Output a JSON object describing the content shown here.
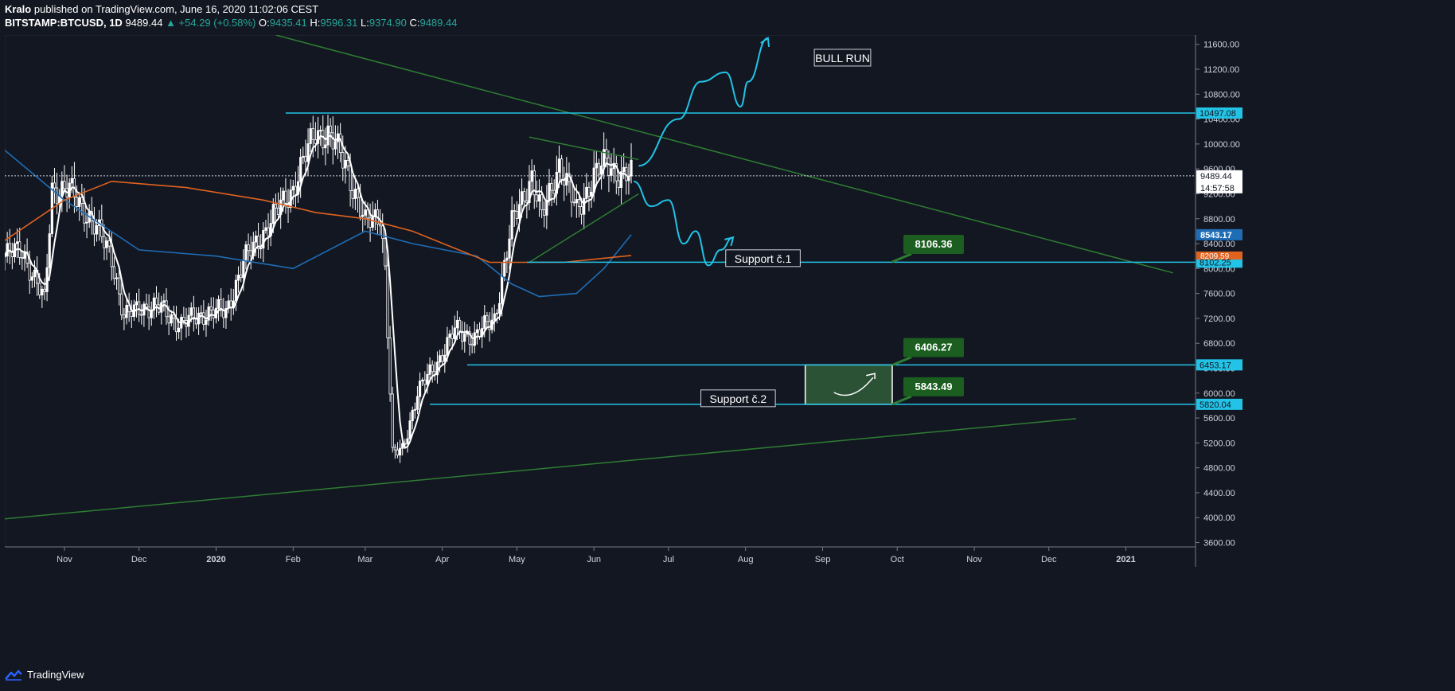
{
  "header": {
    "author": "Kralo",
    "published_text": "published on TradingView.com, June 16, 2020 11:02:06 CEST",
    "symbol": "BITSTAMP:BTCUSD, 1D",
    "price": "9489.44",
    "change": "▲ +54.29 (+0.58%)",
    "o_label": "O:",
    "o": "9435.41",
    "h_label": "H:",
    "h": "9596.31",
    "l_label": "L:",
    "l": "9374.90",
    "c_label": "C:",
    "c": "9489.44"
  },
  "footer": {
    "brand": "TradingView"
  },
  "colors": {
    "background": "#131722",
    "candle": "#ffffff",
    "ma_fast": "#ffffff",
    "ma_blue": "#1e6db5",
    "ma_orange": "#e0621f",
    "level": "#22c3e6",
    "trend": "#2e7d32",
    "label_green": "#1b5e20"
  },
  "chart_data": {
    "type": "candlestick",
    "y_axis": {
      "ticks": [
        "11600.00",
        "11200.00",
        "10800.00",
        "10400.00",
        "10000.00",
        "9600.00",
        "9200.00",
        "8800.00",
        "8400.00",
        "8000.00",
        "7600.00",
        "7200.00",
        "6800.00",
        "6400.00",
        "6000.00",
        "5600.00",
        "5200.00",
        "4800.00",
        "4400.00",
        "4000.00",
        "3600.00"
      ],
      "ylim": [
        3530,
        11750
      ]
    },
    "x_axis": {
      "ticks": [
        {
          "label": "Nov",
          "date": "2019-11-01"
        },
        {
          "label": "Dec",
          "date": "2019-12-01"
        },
        {
          "label": "2020",
          "date": "2020-01-01"
        },
        {
          "label": "Feb",
          "date": "2020-02-01"
        },
        {
          "label": "Mar",
          "date": "2020-03-01"
        },
        {
          "label": "Apr",
          "date": "2020-04-01"
        },
        {
          "label": "May",
          "date": "2020-05-01"
        },
        {
          "label": "Jun",
          "date": "2020-06-01"
        },
        {
          "label": "Jul",
          "date": "2020-07-01"
        },
        {
          "label": "Aug",
          "date": "2020-08-01"
        },
        {
          "label": "Sep",
          "date": "2020-09-01"
        },
        {
          "label": "Oct",
          "date": "2020-10-01"
        },
        {
          "label": "Nov",
          "date": "2020-11-01"
        },
        {
          "label": "Dec",
          "date": "2020-12-01"
        },
        {
          "label": "2021",
          "date": "2021-01-01"
        }
      ],
      "xlim": [
        "2019-10-08",
        "2021-01-29"
      ]
    },
    "price_path": [
      [
        "2019-10-08",
        8200
      ],
      [
        "2019-10-15",
        8300
      ],
      [
        "2019-10-24",
        7450
      ],
      [
        "2019-10-27",
        9300
      ],
      [
        "2019-11-03",
        9250
      ],
      [
        "2019-11-10",
        8900
      ],
      [
        "2019-11-20",
        8200
      ],
      [
        "2019-11-25",
        7200
      ],
      [
        "2019-12-02",
        7400
      ],
      [
        "2019-12-10",
        7350
      ],
      [
        "2019-12-18",
        7100
      ],
      [
        "2019-12-28",
        7300
      ],
      [
        "2020-01-05",
        7300
      ],
      [
        "2020-01-12",
        8100
      ],
      [
        "2020-01-22",
        8700
      ],
      [
        "2020-02-01",
        9300
      ],
      [
        "2020-02-10",
        10200
      ],
      [
        "2020-02-15",
        10150
      ],
      [
        "2020-02-22",
        9700
      ],
      [
        "2020-03-01",
        8700
      ],
      [
        "2020-03-07",
        8900
      ],
      [
        "2020-03-09",
        8000
      ],
      [
        "2020-03-12",
        5000
      ],
      [
        "2020-03-16",
        5100
      ],
      [
        "2020-03-22",
        6000
      ],
      [
        "2020-03-30",
        6500
      ],
      [
        "2020-04-06",
        7000
      ],
      [
        "2020-04-14",
        6900
      ],
      [
        "2020-04-22",
        7200
      ],
      [
        "2020-04-29",
        8700
      ],
      [
        "2020-05-07",
        9500
      ],
      [
        "2020-05-11",
        8800
      ],
      [
        "2020-05-18",
        9700
      ],
      [
        "2020-05-25",
        8900
      ],
      [
        "2020-06-01",
        9500
      ],
      [
        "2020-06-06",
        9700
      ],
      [
        "2020-06-12",
        9500
      ],
      [
        "2020-06-16",
        9489
      ]
    ],
    "moving_averages": [
      {
        "color": "blue",
        "points": [
          [
            "2019-10-08",
            9900
          ],
          [
            "2019-11-01",
            9100
          ],
          [
            "2019-12-01",
            8300
          ],
          [
            "2020-01-01",
            8200
          ],
          [
            "2020-02-01",
            8000
          ],
          [
            "2020-03-01",
            8600
          ],
          [
            "2020-03-20",
            8400
          ],
          [
            "2020-04-15",
            8200
          ],
          [
            "2020-04-29",
            7750
          ],
          [
            "2020-05-10",
            7550
          ],
          [
            "2020-05-25",
            7600
          ],
          [
            "2020-06-05",
            8000
          ],
          [
            "2020-06-16",
            8543
          ]
        ]
      },
      {
        "color": "orange",
        "points": [
          [
            "2019-10-08",
            8450
          ],
          [
            "2019-11-01",
            9100
          ],
          [
            "2019-11-20",
            9400
          ],
          [
            "2019-12-20",
            9300
          ],
          [
            "2020-01-20",
            9100
          ],
          [
            "2020-02-10",
            8900
          ],
          [
            "2020-03-01",
            8800
          ],
          [
            "2020-03-20",
            8600
          ],
          [
            "2020-04-20",
            8100
          ],
          [
            "2020-05-20",
            8100
          ],
          [
            "2020-06-16",
            8210
          ]
        ]
      }
    ],
    "levels": [
      {
        "value": 10497.08,
        "label": "10497.08",
        "from": "2020-01-29"
      },
      {
        "value": 8102.25,
        "label": "8102.25",
        "from": "2020-05-05"
      },
      {
        "value": 6453.17,
        "label": "6453.17",
        "from": "2020-04-11"
      },
      {
        "value": 5820.04,
        "label": "5820.04",
        "from": "2020-03-27"
      }
    ],
    "trendlines": [
      {
        "from": [
          "2020-01-25",
          11750
        ],
        "to": [
          "2021-01-20",
          7930
        ]
      },
      {
        "from": [
          "2019-10-08",
          3980
        ],
        "to": [
          "2020-12-12",
          5590
        ]
      },
      {
        "from": [
          "2020-05-06",
          10110
        ],
        "to": [
          "2020-06-19",
          9750
        ]
      },
      {
        "from": [
          "2020-05-06",
          8100
        ],
        "to": [
          "2020-06-19",
          9200
        ]
      }
    ],
    "price_labels": [
      {
        "text": "9489.44",
        "value": 9489.44,
        "sub": "14:57:58"
      },
      {
        "text": "8543.17",
        "value": 8543.17
      },
      {
        "text": "8209.59",
        "value": 8209.59
      }
    ],
    "annotations": [
      {
        "text": "BULL RUN",
        "at": [
          "2020-09-09",
          11380
        ]
      },
      {
        "text": "Support č.1",
        "at": [
          "2020-08-08",
          8160
        ]
      },
      {
        "text": "Support č.2",
        "at": [
          "2020-07-29",
          5910
        ]
      },
      {
        "text": "8106.36",
        "value": 8106.36,
        "at": [
          "2020-09-29",
          8106.36
        ]
      },
      {
        "text": "6406.27",
        "value": 6406.27,
        "at": [
          "2020-09-29",
          6450
        ]
      },
      {
        "text": "5843.49",
        "value": 5843.49,
        "at": [
          "2020-09-29",
          5820
        ]
      }
    ],
    "projection_box": {
      "x_from": "2020-08-25",
      "x_to": "2020-09-29",
      "y_top": 6453.17,
      "y_bottom": 5820.04
    },
    "projections": [
      {
        "name": "bull",
        "points": [
          [
            "2020-06-19",
            9650
          ],
          [
            "2020-07-05",
            10400
          ],
          [
            "2020-07-14",
            11000
          ],
          [
            "2020-07-24",
            11150
          ],
          [
            "2020-07-30",
            10600
          ],
          [
            "2020-08-02",
            11000
          ],
          [
            "2020-08-10",
            11700
          ]
        ]
      },
      {
        "name": "bear",
        "points": [
          [
            "2020-06-17",
            9400
          ],
          [
            "2020-06-24",
            9000
          ],
          [
            "2020-07-01",
            9100
          ],
          [
            "2020-07-07",
            8400
          ],
          [
            "2020-07-12",
            8600
          ],
          [
            "2020-07-17",
            8050
          ],
          [
            "2020-07-22",
            8300
          ],
          [
            "2020-07-27",
            8500
          ]
        ]
      }
    ]
  }
}
